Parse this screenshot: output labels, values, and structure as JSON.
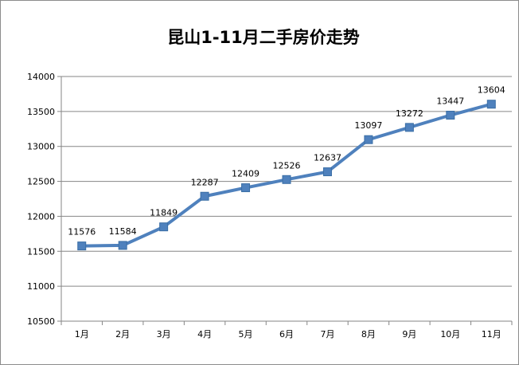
{
  "chart_data": {
    "type": "line",
    "title": "昆山1-11月二手房价走势",
    "categories": [
      "1月",
      "2月",
      "3月",
      "4月",
      "5月",
      "6月",
      "7月",
      "8月",
      "9月",
      "10月",
      "11月"
    ],
    "series": [
      {
        "values": [
          11576,
          11584,
          11849,
          12287,
          12409,
          12526,
          12637,
          13097,
          13272,
          13447,
          13604
        ]
      }
    ],
    "ylim": [
      10500,
      14000
    ],
    "yticks": [
      10500,
      11000,
      11500,
      12000,
      12500,
      13000,
      13500,
      14000
    ],
    "grid": true,
    "data_labels": true,
    "legend": "none",
    "colors": {
      "line": "#4f81bd",
      "marker": "#4f81bd",
      "grid": "#868686",
      "axis": "#868686"
    }
  }
}
